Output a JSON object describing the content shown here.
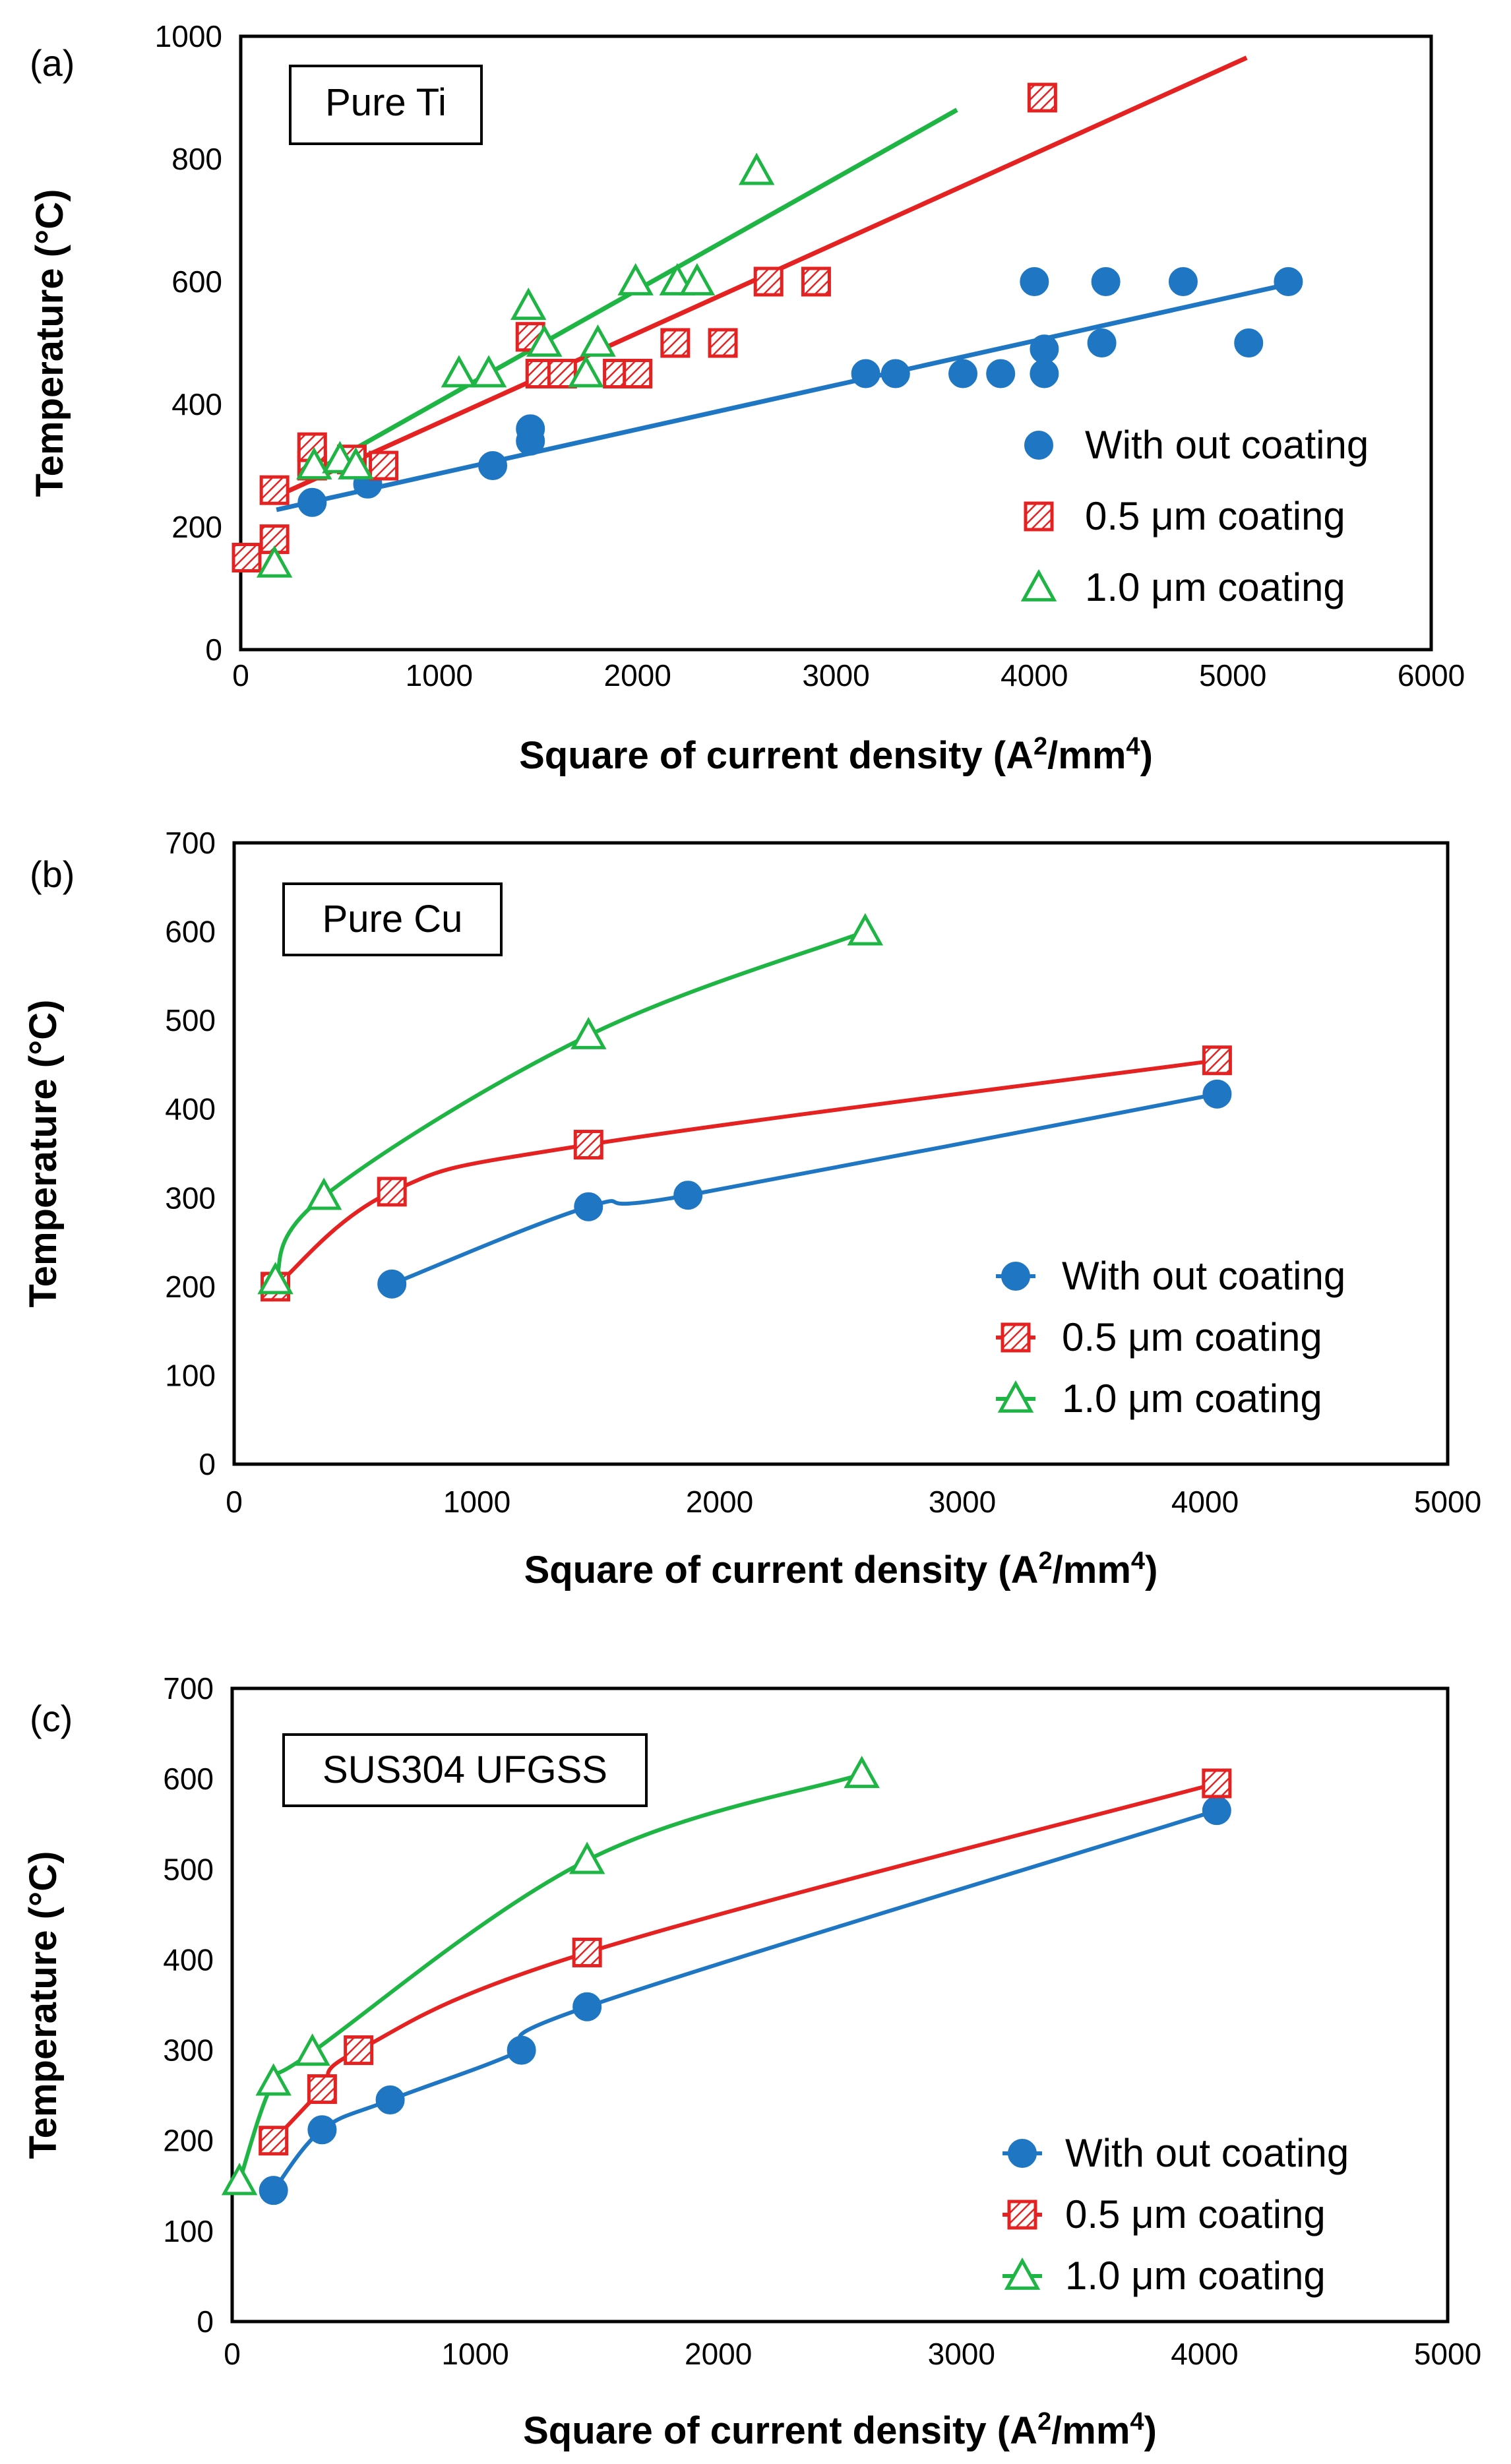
{
  "figure": {
    "domain": "Chart",
    "colors": {
      "without_coating": "#1f77c4",
      "coating_0_5": "#e52222",
      "coating_1_0": "#1fb544",
      "frame": "#000000"
    }
  },
  "chart_data": [
    {
      "id": "a",
      "panel_label": "(a)",
      "type": "scatter",
      "title": "Pure Ti",
      "xlabel": "Square of current density (A",
      "xlabel_sup1": "2",
      "xlabel_mid": "/mm",
      "xlabel_sup2": "4",
      "xlabel_end": ")",
      "ylabel": "Temperature (°C)",
      "xlim": [
        0,
        6000
      ],
      "ylim": [
        0,
        1000
      ],
      "xticks": [
        0,
        1000,
        2000,
        3000,
        4000,
        5000,
        6000
      ],
      "yticks": [
        0,
        200,
        400,
        600,
        800,
        1000
      ],
      "legend_position": "bottom-right",
      "series": [
        {
          "name": "With out coating",
          "marker": "circle",
          "color": "#1f77c4",
          "x": [
            360,
            640,
            1270,
            1460,
            1460,
            3150,
            3300,
            3640,
            3830,
            4000,
            4050,
            4050,
            4340,
            4360,
            4750,
            5080,
            5280
          ],
          "y": [
            240,
            270,
            300,
            340,
            360,
            450,
            450,
            450,
            450,
            600,
            490,
            450,
            500,
            600,
            600,
            500,
            600
          ],
          "trend": {
            "x": [
              180,
              5270
            ],
            "y": [
              228,
              595
            ]
          }
        },
        {
          "name": "0.5 μm coating",
          "marker": "square-hatched",
          "color": "#e52222",
          "x": [
            30,
            170,
            170,
            360,
            360,
            560,
            720,
            1460,
            1510,
            1620,
            1900,
            2000,
            2190,
            2430,
            2660,
            2900,
            4040
          ],
          "y": [
            150,
            180,
            260,
            300,
            330,
            310,
            300,
            510,
            450,
            450,
            450,
            450,
            500,
            500,
            600,
            600,
            900
          ],
          "trend": {
            "x": [
              180,
              5070
            ],
            "y": [
              250,
              965
            ]
          }
        },
        {
          "name": "1.0 μm coating",
          "marker": "triangle",
          "color": "#1fb544",
          "x": [
            170,
            370,
            500,
            580,
            1100,
            1250,
            1450,
            1530,
            1740,
            1800,
            1990,
            2200,
            2300,
            2600
          ],
          "y": [
            140,
            300,
            310,
            300,
            450,
            450,
            560,
            500,
            450,
            500,
            600,
            600,
            600,
            780
          ],
          "trend": {
            "x": [
              370,
              3610
            ],
            "y": [
              290,
              880
            ]
          }
        }
      ]
    },
    {
      "id": "b",
      "panel_label": "(b)",
      "type": "line",
      "title": "Pure Cu",
      "xlabel": "Square of current density (A",
      "xlabel_sup1": "2",
      "xlabel_mid": "/mm",
      "xlabel_sup2": "4",
      "xlabel_end": ")",
      "ylabel": "Temperature (°C)",
      "xlim": [
        0,
        5000
      ],
      "ylim": [
        0,
        700
      ],
      "xticks": [
        0,
        1000,
        2000,
        3000,
        4000,
        5000
      ],
      "yticks": [
        0,
        100,
        200,
        300,
        400,
        500,
        600,
        700
      ],
      "legend_position": "bottom-right",
      "series": [
        {
          "name": "With out coating",
          "marker": "circle",
          "color": "#1f77c4",
          "x": [
            650,
            1460,
            1870,
            4050
          ],
          "y": [
            203,
            290,
            303,
            417
          ]
        },
        {
          "name": "0.5 μm coating",
          "marker": "square-hatched",
          "color": "#e52222",
          "x": [
            170,
            650,
            1460,
            4050
          ],
          "y": [
            200,
            307,
            360,
            455
          ]
        },
        {
          "name": "1.0 μm coating",
          "marker": "triangle",
          "color": "#1fb544",
          "x": [
            170,
            370,
            1460,
            2600
          ],
          "y": [
            207,
            302,
            483,
            600
          ]
        }
      ]
    },
    {
      "id": "c",
      "panel_label": "(c)",
      "type": "line",
      "title": "SUS304 UFGSS",
      "xlabel": "Square of current density (A",
      "xlabel_sup1": "2",
      "xlabel_mid": "/mm",
      "xlabel_sup2": "4",
      "xlabel_end": ")",
      "ylabel": "Temperature (°C)",
      "xlim": [
        0,
        5000
      ],
      "ylim": [
        0,
        700
      ],
      "xticks": [
        0,
        1000,
        2000,
        3000,
        4000,
        5000
      ],
      "yticks": [
        0,
        100,
        200,
        300,
        400,
        500,
        600,
        700
      ],
      "legend_position": "bottom-right",
      "series": [
        {
          "name": "With out coating",
          "marker": "circle",
          "color": "#1f77c4",
          "x": [
            170,
            370,
            650,
            1190,
            1460,
            4050
          ],
          "y": [
            145,
            212,
            245,
            300,
            348,
            565
          ]
        },
        {
          "name": "0.5 μm coating",
          "marker": "square-hatched",
          "color": "#e52222",
          "x": [
            170,
            370,
            520,
            1460,
            4050
          ],
          "y": [
            200,
            257,
            300,
            408,
            595
          ]
        },
        {
          "name": "1.0 μm coating",
          "marker": "triangle",
          "color": "#1fb544",
          "x": [
            30,
            170,
            330,
            1460,
            2590
          ],
          "y": [
            155,
            265,
            298,
            510,
            605
          ]
        }
      ]
    }
  ]
}
